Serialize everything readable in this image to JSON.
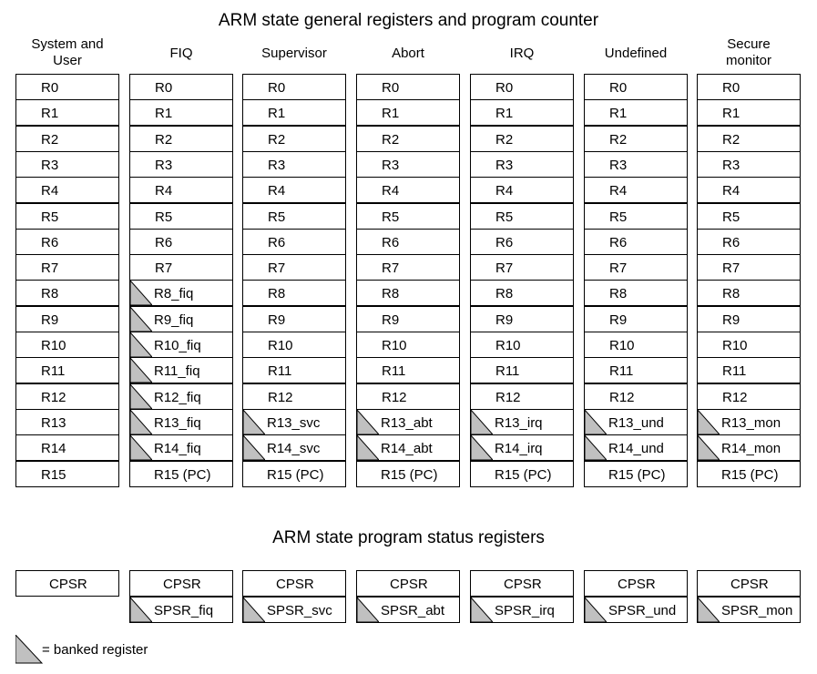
{
  "titles": {
    "registers": "ARM state general registers and program counter",
    "status": "ARM state program status registers"
  },
  "colors": {
    "banked_fill": "#c0c0c0",
    "border": "#000000"
  },
  "modes": [
    {
      "name": "System and User",
      "header_lines": [
        "System and",
        "User"
      ],
      "registers": [
        {
          "label": "R0",
          "banked": false
        },
        {
          "label": "R1",
          "banked": false
        },
        {
          "label": "R2",
          "banked": false
        },
        {
          "label": "R3",
          "banked": false
        },
        {
          "label": "R4",
          "banked": false
        },
        {
          "label": "R5",
          "banked": false
        },
        {
          "label": "R6",
          "banked": false
        },
        {
          "label": "R7",
          "banked": false
        },
        {
          "label": "R8",
          "banked": false
        },
        {
          "label": "R9",
          "banked": false
        },
        {
          "label": "R10",
          "banked": false
        },
        {
          "label": "R11",
          "banked": false
        },
        {
          "label": "R12",
          "banked": false
        },
        {
          "label": "R13",
          "banked": false
        },
        {
          "label": "R14",
          "banked": false
        },
        {
          "label": "R15",
          "banked": false
        }
      ],
      "status": [
        {
          "label": "CPSR",
          "banked": false
        }
      ]
    },
    {
      "name": "FIQ",
      "header_lines": [
        "FIQ"
      ],
      "registers": [
        {
          "label": "R0",
          "banked": false
        },
        {
          "label": "R1",
          "banked": false
        },
        {
          "label": "R2",
          "banked": false
        },
        {
          "label": "R3",
          "banked": false
        },
        {
          "label": "R4",
          "banked": false
        },
        {
          "label": "R5",
          "banked": false
        },
        {
          "label": "R6",
          "banked": false
        },
        {
          "label": "R7",
          "banked": false
        },
        {
          "label": "R8_fiq",
          "banked": true
        },
        {
          "label": "R9_fiq",
          "banked": true
        },
        {
          "label": "R10_fiq",
          "banked": true
        },
        {
          "label": "R11_fiq",
          "banked": true
        },
        {
          "label": "R12_fiq",
          "banked": true
        },
        {
          "label": "R13_fiq",
          "banked": true
        },
        {
          "label": "R14_fiq",
          "banked": true
        },
        {
          "label": "R15 (PC)",
          "banked": false
        }
      ],
      "status": [
        {
          "label": "CPSR",
          "banked": false
        },
        {
          "label": "SPSR_fiq",
          "banked": true
        }
      ]
    },
    {
      "name": "Supervisor",
      "header_lines": [
        "Supervisor"
      ],
      "registers": [
        {
          "label": "R0",
          "banked": false
        },
        {
          "label": "R1",
          "banked": false
        },
        {
          "label": "R2",
          "banked": false
        },
        {
          "label": "R3",
          "banked": false
        },
        {
          "label": "R4",
          "banked": false
        },
        {
          "label": "R5",
          "banked": false
        },
        {
          "label": "R6",
          "banked": false
        },
        {
          "label": "R7",
          "banked": false
        },
        {
          "label": "R8",
          "banked": false
        },
        {
          "label": "R9",
          "banked": false
        },
        {
          "label": "R10",
          "banked": false
        },
        {
          "label": "R11",
          "banked": false
        },
        {
          "label": "R12",
          "banked": false
        },
        {
          "label": "R13_svc",
          "banked": true
        },
        {
          "label": "R14_svc",
          "banked": true
        },
        {
          "label": "R15 (PC)",
          "banked": false
        }
      ],
      "status": [
        {
          "label": "CPSR",
          "banked": false
        },
        {
          "label": "SPSR_svc",
          "banked": true
        }
      ]
    },
    {
      "name": "Abort",
      "header_lines": [
        "Abort"
      ],
      "registers": [
        {
          "label": "R0",
          "banked": false
        },
        {
          "label": "R1",
          "banked": false
        },
        {
          "label": "R2",
          "banked": false
        },
        {
          "label": "R3",
          "banked": false
        },
        {
          "label": "R4",
          "banked": false
        },
        {
          "label": "R5",
          "banked": false
        },
        {
          "label": "R6",
          "banked": false
        },
        {
          "label": "R7",
          "banked": false
        },
        {
          "label": "R8",
          "banked": false
        },
        {
          "label": "R9",
          "banked": false
        },
        {
          "label": "R10",
          "banked": false
        },
        {
          "label": "R11",
          "banked": false
        },
        {
          "label": "R12",
          "banked": false
        },
        {
          "label": "R13_abt",
          "banked": true
        },
        {
          "label": "R14_abt",
          "banked": true
        },
        {
          "label": "R15 (PC)",
          "banked": false
        }
      ],
      "status": [
        {
          "label": "CPSR",
          "banked": false
        },
        {
          "label": "SPSR_abt",
          "banked": true
        }
      ]
    },
    {
      "name": "IRQ",
      "header_lines": [
        "IRQ"
      ],
      "registers": [
        {
          "label": "R0",
          "banked": false
        },
        {
          "label": "R1",
          "banked": false
        },
        {
          "label": "R2",
          "banked": false
        },
        {
          "label": "R3",
          "banked": false
        },
        {
          "label": "R4",
          "banked": false
        },
        {
          "label": "R5",
          "banked": false
        },
        {
          "label": "R6",
          "banked": false
        },
        {
          "label": "R7",
          "banked": false
        },
        {
          "label": "R8",
          "banked": false
        },
        {
          "label": "R9",
          "banked": false
        },
        {
          "label": "R10",
          "banked": false
        },
        {
          "label": "R11",
          "banked": false
        },
        {
          "label": "R12",
          "banked": false
        },
        {
          "label": "R13_irq",
          "banked": true
        },
        {
          "label": "R14_irq",
          "banked": true
        },
        {
          "label": "R15 (PC)",
          "banked": false
        }
      ],
      "status": [
        {
          "label": "CPSR",
          "banked": false
        },
        {
          "label": "SPSR_irq",
          "banked": true
        }
      ]
    },
    {
      "name": "Undefined",
      "header_lines": [
        "Undefined"
      ],
      "registers": [
        {
          "label": "R0",
          "banked": false
        },
        {
          "label": "R1",
          "banked": false
        },
        {
          "label": "R2",
          "banked": false
        },
        {
          "label": "R3",
          "banked": false
        },
        {
          "label": "R4",
          "banked": false
        },
        {
          "label": "R5",
          "banked": false
        },
        {
          "label": "R6",
          "banked": false
        },
        {
          "label": "R7",
          "banked": false
        },
        {
          "label": "R8",
          "banked": false
        },
        {
          "label": "R9",
          "banked": false
        },
        {
          "label": "R10",
          "banked": false
        },
        {
          "label": "R11",
          "banked": false
        },
        {
          "label": "R12",
          "banked": false
        },
        {
          "label": "R13_und",
          "banked": true
        },
        {
          "label": "R14_und",
          "banked": true
        },
        {
          "label": "R15 (PC)",
          "banked": false
        }
      ],
      "status": [
        {
          "label": "CPSR",
          "banked": false
        },
        {
          "label": "SPSR_und",
          "banked": true
        }
      ]
    },
    {
      "name": "Secure monitor",
      "header_lines": [
        "Secure",
        "monitor"
      ],
      "registers": [
        {
          "label": "R0",
          "banked": false
        },
        {
          "label": "R1",
          "banked": false
        },
        {
          "label": "R2",
          "banked": false
        },
        {
          "label": "R3",
          "banked": false
        },
        {
          "label": "R4",
          "banked": false
        },
        {
          "label": "R5",
          "banked": false
        },
        {
          "label": "R6",
          "banked": false
        },
        {
          "label": "R7",
          "banked": false
        },
        {
          "label": "R8",
          "banked": false
        },
        {
          "label": "R9",
          "banked": false
        },
        {
          "label": "R10",
          "banked": false
        },
        {
          "label": "R11",
          "banked": false
        },
        {
          "label": "R12",
          "banked": false
        },
        {
          "label": "R13_mon",
          "banked": true
        },
        {
          "label": "R14_mon",
          "banked": true
        },
        {
          "label": "R15 (PC)",
          "banked": false
        }
      ],
      "status": [
        {
          "label": "CPSR",
          "banked": false
        },
        {
          "label": "SPSR_mon",
          "banked": true
        }
      ]
    }
  ],
  "legend": {
    "text": "= banked register"
  }
}
